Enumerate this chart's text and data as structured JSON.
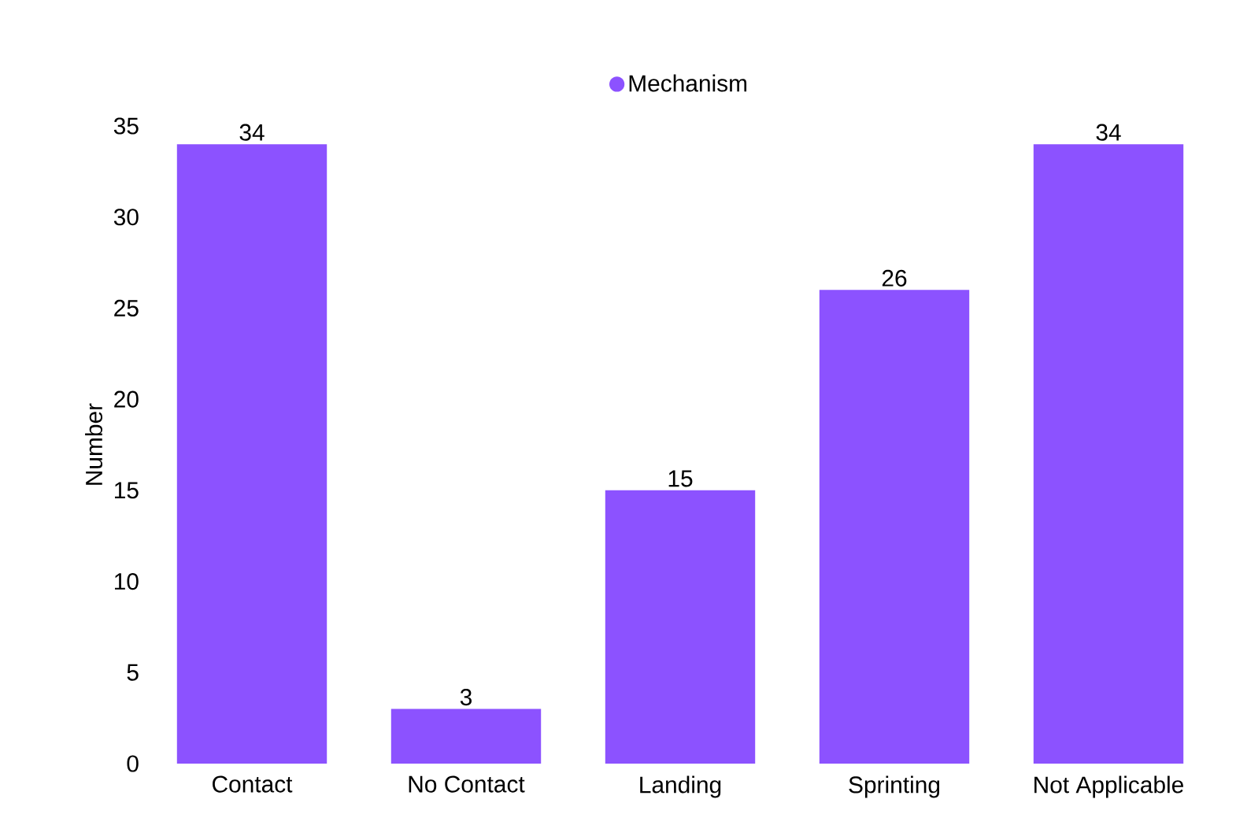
{
  "chart_data": {
    "type": "bar",
    "ylabel": "Number",
    "categories": [
      "Contact",
      "No Contact",
      "Landing",
      "Sprinting",
      "Not Applicable"
    ],
    "series": [
      {
        "name": "Mechanism",
        "color": "#8c52ff",
        "values": [
          34,
          3,
          15,
          26,
          34
        ]
      }
    ],
    "ylim": [
      0,
      35
    ],
    "yticks": [
      0,
      5,
      10,
      15,
      20,
      25,
      30,
      35
    ],
    "data_labels": true,
    "legend": "top",
    "grid": false
  }
}
